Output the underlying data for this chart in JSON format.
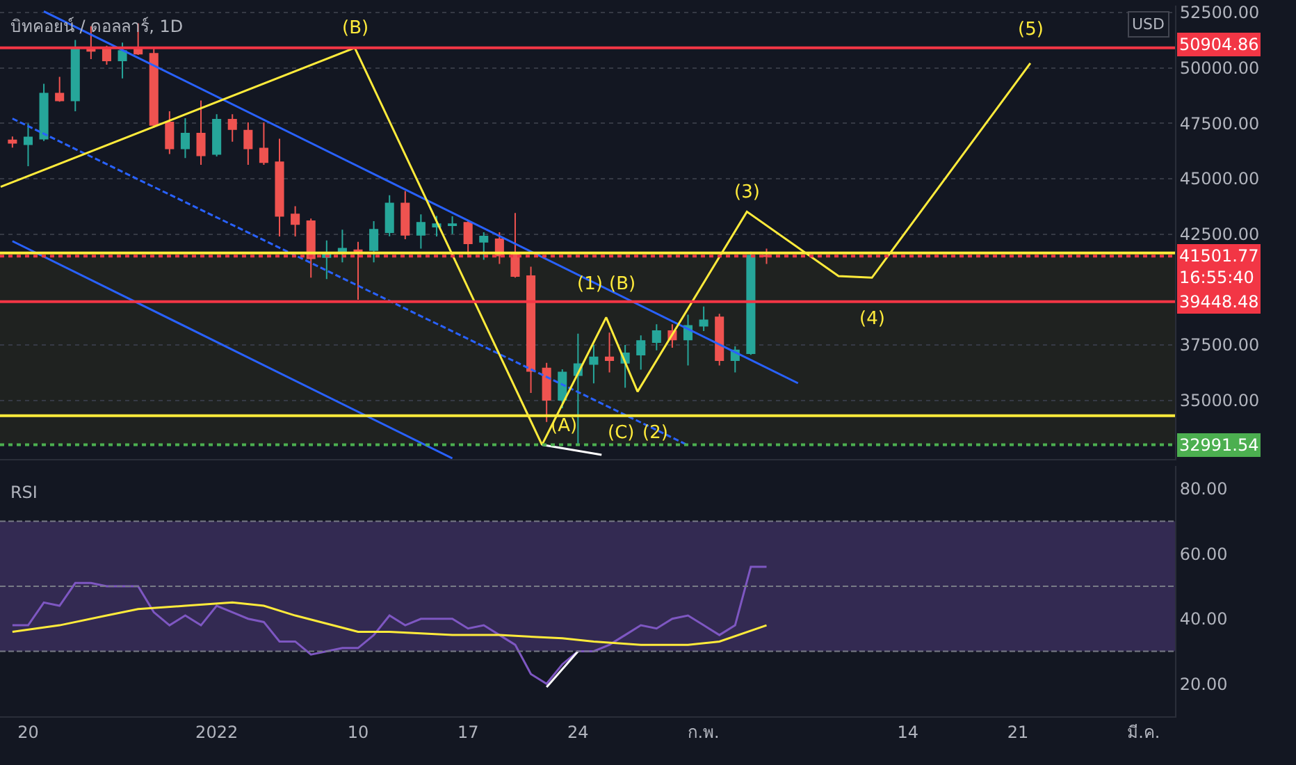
{
  "chart_data": [
    {
      "type": "candlestick",
      "title": "บิทคอยน์ / ดอลลาร์, 1D",
      "x": [
        "2021-12-19",
        "2021-12-20",
        "2021-12-21",
        "2021-12-22",
        "2021-12-23",
        "2021-12-24",
        "2021-12-25",
        "2021-12-26",
        "2021-12-27",
        "2021-12-28",
        "2021-12-29",
        "2021-12-30",
        "2021-12-31",
        "2022-01-01",
        "2022-01-02",
        "2022-01-03",
        "2022-01-04",
        "2022-01-05",
        "2022-01-06",
        "2022-01-07",
        "2022-01-08",
        "2022-01-09",
        "2022-01-10",
        "2022-01-11",
        "2022-01-12",
        "2022-01-13",
        "2022-01-14",
        "2022-01-15",
        "2022-01-16",
        "2022-01-17",
        "2022-01-18",
        "2022-01-19",
        "2022-01-20",
        "2022-01-21",
        "2022-01-22",
        "2022-01-23",
        "2022-01-24",
        "2022-01-25",
        "2022-01-26",
        "2022-01-27",
        "2022-01-28",
        "2022-01-29",
        "2022-01-30",
        "2022-01-31",
        "2022-02-01",
        "2022-02-02",
        "2022-02-03",
        "2022-02-04",
        "2022-02-05"
      ],
      "ohlc": [
        [
          46730,
          46900,
          46400,
          46610
        ],
        [
          46550,
          47480,
          45560,
          46860
        ],
        [
          46800,
          49280,
          46700,
          48840
        ],
        [
          48840,
          49590,
          48470,
          48530
        ],
        [
          48530,
          51260,
          48040,
          50830
        ],
        [
          50830,
          51880,
          50390,
          50760
        ],
        [
          50830,
          51000,
          50140,
          50330
        ],
        [
          50330,
          51140,
          49520,
          50760
        ],
        [
          50830,
          52000,
          50580,
          50640
        ],
        [
          50640,
          50900,
          47300,
          47420
        ],
        [
          47540,
          48040,
          46110,
          46360
        ],
        [
          46360,
          47730,
          45930,
          47040
        ],
        [
          47040,
          48530,
          45620,
          46050
        ],
        [
          46110,
          47910,
          46000,
          47660
        ],
        [
          47660,
          47910,
          46670,
          47230
        ],
        [
          47170,
          47540,
          45620,
          46360
        ],
        [
          46360,
          47540,
          45620,
          45740
        ],
        [
          45740,
          46800,
          42390,
          43320
        ],
        [
          43390,
          43760,
          42390,
          42950
        ],
        [
          43080,
          43200,
          40530,
          41400
        ],
        [
          41460,
          42210,
          40470,
          41650
        ],
        [
          41650,
          42700,
          41220,
          41840
        ],
        [
          41770,
          42150,
          39540,
          41710
        ],
        [
          41770,
          43080,
          41220,
          42700
        ],
        [
          42580,
          44250,
          42400,
          43880
        ],
        [
          43880,
          44440,
          42270,
          42460
        ],
        [
          42460,
          43390,
          41840,
          43010
        ],
        [
          42830,
          43320,
          42390,
          42950
        ],
        [
          42890,
          43300,
          42500,
          42950
        ],
        [
          43010,
          43080,
          41530,
          42080
        ],
        [
          42150,
          42580,
          41340,
          42390
        ],
        [
          42270,
          42580,
          41150,
          41530
        ],
        [
          41650,
          43450,
          40530,
          40600
        ],
        [
          40600,
          41030,
          35330,
          36320
        ],
        [
          36440,
          36690,
          34020,
          35020
        ],
        [
          35020,
          36400,
          34640,
          36260
        ],
        [
          36130,
          38010,
          33000,
          36630
        ],
        [
          36630,
          37500,
          35760,
          36940
        ],
        [
          36940,
          38050,
          36260,
          36810
        ],
        [
          36690,
          37500,
          35570,
          37120
        ],
        [
          37060,
          37930,
          36380,
          37680
        ],
        [
          37620,
          38430,
          37250,
          38120
        ],
        [
          38120,
          38430,
          37370,
          37740
        ],
        [
          37740,
          38860,
          36570,
          38360
        ],
        [
          38360,
          39230,
          38120,
          38610
        ],
        [
          38740,
          38900,
          36570,
          36810
        ],
        [
          36810,
          37430,
          36260,
          37250
        ],
        [
          37120,
          41710,
          37050,
          41530
        ],
        [
          41530,
          41840,
          41150,
          41500
        ]
      ],
      "series": [
        {
          "type": "line",
          "color": "#2962ff",
          "x": [
            "2021-12-21",
            "2022-02-07"
          ],
          "values": [
            52550,
            35770
          ]
        },
        {
          "type": "line",
          "color": "#2962ff",
          "x": [
            "2021-12-19",
            "2022-01-16"
          ],
          "values": [
            42180,
            32380
          ]
        },
        {
          "type": "line",
          "color": "#2962ff",
          "line_style": "dashed",
          "x": [
            "2021-12-19",
            "2022-01-31"
          ],
          "values": [
            47710,
            32970
          ]
        },
        {
          "type": "line",
          "color": "#ffeb3b",
          "x": [
            "2021-12-18T06:00",
            "2022-01-09T19:00",
            "2022-01-21T17:00",
            "2022-01-25T19:00",
            "2022-01-27T19:00",
            "2022-02-03T18:00",
            "2022-02-09T14:00",
            "2022-02-11T17:00",
            "2022-02-21T19:00"
          ],
          "values": [
            44630,
            50900,
            32990,
            38740,
            35390,
            43510,
            40600,
            40530,
            50210
          ]
        },
        {
          "type": "line",
          "color": "#ffffff",
          "x": [
            "2022-01-21T17:00",
            "2022-01-25T12:00"
          ],
          "values": [
            32990,
            32540
          ]
        }
      ],
      "xlim": [
        "2021-12-18T05:00",
        "2022-03-03T00:00"
      ],
      "ylim": [
        32350,
        52810
      ],
      "yticks": [
        {
          "value": 35000,
          "label": "35000.00"
        },
        {
          "value": 37500,
          "label": "37500.00"
        },
        {
          "value": 42500,
          "label": "42500.00"
        },
        {
          "value": 45000,
          "label": "45000.00"
        },
        {
          "value": 47500,
          "label": "47500.00"
        },
        {
          "value": 50000,
          "label": "50000.00"
        },
        {
          "value": 52500,
          "label": "52500.00"
        }
      ],
      "tick_labels": "y",
      "grid": "y",
      "ref_lines": [
        {
          "axis": "y",
          "value": 50904.86,
          "label": "50904.86",
          "color": "#f23645"
        },
        {
          "axis": "y",
          "value": 41650,
          "color": "#ffeb3b"
        },
        {
          "axis": "y",
          "value": 41501.77,
          "label": "41501.77\n16:55:40",
          "color": "#f23645",
          "line_style": "dotted"
        },
        {
          "axis": "y",
          "value": 39448.48,
          "label": "39448.48",
          "color": "#f23645"
        },
        {
          "axis": "y",
          "value": 34300,
          "color": "#ffeb3b"
        },
        {
          "axis": "y",
          "value": 32991.54,
          "label": "32991.54",
          "color": "#4caf50",
          "line_style": "dotted"
        }
      ],
      "bands": [
        {
          "axis": "y",
          "from": 32991.54,
          "to": 41650,
          "color": "#3b3b1f"
        }
      ],
      "annotations": [
        "USD",
        {
          "text": "(B)",
          "x": "2022-01-09T19:00",
          "y": 50900
        },
        {
          "text": "(3)",
          "x": "2022-02-03T18:00",
          "y": 43510
        },
        {
          "text": "(1)",
          "x": "2022-01-25T19:00",
          "y": 38740
        },
        {
          "text": "(B)",
          "x": "2022-01-25T19:00",
          "y": 38740
        },
        {
          "text": "(A)",
          "x": "2022-01-21T17:00",
          "y": 32990
        },
        {
          "text": "(C)",
          "x": "2022-01-27T19:00",
          "y": 35390
        },
        {
          "text": "(2)",
          "x": "2022-01-27T19:00",
          "y": 35390
        },
        {
          "text": "(4)",
          "x": "2022-02-11T17:00",
          "y": 40530
        },
        {
          "text": "(5)",
          "x": "2022-02-21T19:00",
          "y": 50210
        }
      ]
    },
    {
      "type": "line",
      "title": "RSI",
      "x": [
        "2021-12-19",
        "2021-12-20",
        "2021-12-21",
        "2021-12-22",
        "2021-12-23",
        "2021-12-24",
        "2021-12-25",
        "2021-12-26",
        "2021-12-27",
        "2021-12-28",
        "2021-12-29",
        "2021-12-30",
        "2021-12-31",
        "2022-01-01",
        "2022-01-02",
        "2022-01-03",
        "2022-01-04",
        "2022-01-05",
        "2022-01-06",
        "2022-01-07",
        "2022-01-08",
        "2022-01-09",
        "2022-01-10",
        "2022-01-11",
        "2022-01-12",
        "2022-01-13",
        "2022-01-14",
        "2022-01-15",
        "2022-01-16",
        "2022-01-17",
        "2022-01-18",
        "2022-01-19",
        "2022-01-20",
        "2022-01-21",
        "2022-01-22",
        "2022-01-23",
        "2022-01-24",
        "2022-01-25",
        "2022-01-26",
        "2022-01-27",
        "2022-01-28",
        "2022-01-29",
        "2022-01-30",
        "2022-01-31",
        "2022-02-01",
        "2022-02-02",
        "2022-02-03",
        "2022-02-04",
        "2022-02-05"
      ],
      "series": [
        {
          "color": "#7e57c2",
          "values": [
            38,
            38,
            45,
            44,
            51,
            51,
            50,
            50,
            50,
            42,
            38,
            41,
            38,
            44,
            42,
            40,
            39,
            33,
            33,
            29,
            30,
            31,
            31,
            35,
            41,
            38,
            40,
            40,
            40,
            37,
            38,
            35,
            32,
            23,
            20,
            26,
            30,
            30,
            32,
            35,
            38,
            37,
            40,
            41,
            38,
            35,
            38,
            56,
            56
          ]
        },
        {
          "color": "#ffeb3b",
          "x": [
            "2021-12-19",
            "2021-12-22",
            "2021-12-25",
            "2021-12-27",
            "2021-12-30",
            "2022-01-02",
            "2022-01-04",
            "2022-01-06",
            "2022-01-10",
            "2022-01-12",
            "2022-01-16",
            "2022-01-19",
            "2022-01-23",
            "2022-01-25",
            "2022-01-28",
            "2022-01-31",
            "2022-02-02",
            "2022-02-05"
          ],
          "values": [
            36,
            38,
            41,
            43,
            44,
            45,
            44,
            41,
            36,
            36,
            35,
            35,
            34,
            33,
            32,
            32,
            33,
            38
          ]
        },
        {
          "color": "#ffffff",
          "x": [
            "2022-01-22",
            "2022-01-24"
          ],
          "values": [
            19,
            30
          ]
        }
      ],
      "xlim": [
        "2021-12-18T05:00",
        "2022-03-03T00:00"
      ],
      "ylim": [
        10,
        87
      ],
      "xticks": [
        {
          "value": "2021-12-20",
          "label": "20"
        },
        {
          "value": "2022-01-01",
          "label": "2022"
        },
        {
          "value": "2022-01-10",
          "label": "10"
        },
        {
          "value": "2022-01-17",
          "label": "17"
        },
        {
          "value": "2022-01-24",
          "label": "24"
        },
        {
          "value": "2022-02-01",
          "label": "ก.พ."
        },
        {
          "value": "2022-02-14",
          "label": "14"
        },
        {
          "value": "2022-02-21",
          "label": "21"
        },
        {
          "value": "2022-03-01",
          "label": "มี.ค."
        }
      ],
      "yticks": [
        {
          "value": 20,
          "label": "20.00"
        },
        {
          "value": 40,
          "label": "40.00"
        },
        {
          "value": 60,
          "label": "60.00"
        },
        {
          "value": 80,
          "label": "80.00"
        }
      ],
      "ref_lines": [
        {
          "axis": "y",
          "value": 70,
          "color": "#787b86",
          "line_style": "dashed"
        },
        {
          "axis": "y",
          "value": 50,
          "color": "#787b86",
          "line_style": "dashed"
        },
        {
          "axis": "y",
          "value": 30,
          "color": "#787b86",
          "line_style": "dashed"
        }
      ],
      "bands": [
        {
          "axis": "y",
          "from": 30,
          "to": 70,
          "color": "#7e57c2"
        }
      ]
    }
  ]
}
